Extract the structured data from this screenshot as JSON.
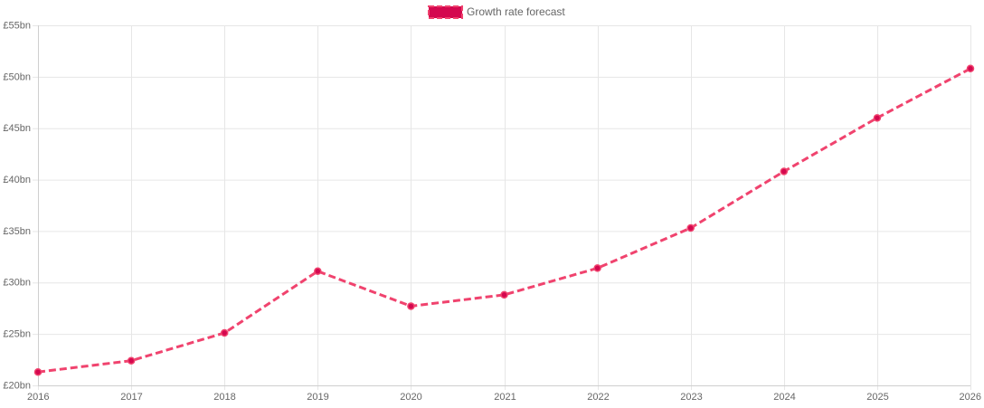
{
  "chart_data": {
    "type": "line",
    "title": "",
    "xlabel": "",
    "ylabel": "",
    "categories": [
      "2016",
      "2017",
      "2018",
      "2019",
      "2020",
      "2021",
      "2022",
      "2023",
      "2024",
      "2025",
      "2026"
    ],
    "series": [
      {
        "name": "Growth rate forecast",
        "values": [
          21.3,
          22.4,
          25.1,
          31.1,
          27.7,
          28.8,
          31.4,
          35.3,
          40.8,
          46.0,
          50.8
        ],
        "line_color": "#f0436e",
        "point_color": "#d4084f",
        "dashed": true
      }
    ],
    "ylim": [
      20,
      55
    ],
    "y_ticks": [
      {
        "value": 20,
        "label": "£20bn"
      },
      {
        "value": 25,
        "label": "£25bn"
      },
      {
        "value": 30,
        "label": "£30bn"
      },
      {
        "value": 35,
        "label": "£35bn"
      },
      {
        "value": 40,
        "label": "£40bn"
      },
      {
        "value": 45,
        "label": "£45bn"
      },
      {
        "value": 50,
        "label": "£50bn"
      },
      {
        "value": 55,
        "label": "£55bn"
      }
    ],
    "grid": true,
    "legend_position": "top-center",
    "grid_color": "#e6e6e6",
    "text_color": "#666666"
  }
}
